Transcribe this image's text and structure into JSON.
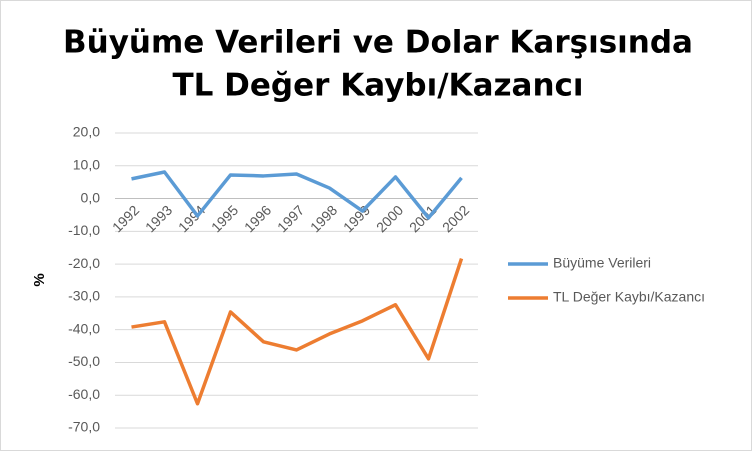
{
  "chart_data": {
    "type": "line",
    "title": [
      "Büyüme Verileri ve Dolar Karşısında",
      "TL Değer Kaybı/Kazancı"
    ],
    "y_label": "%",
    "categories": [
      "1992",
      "1993",
      "1994",
      "1995",
      "1996",
      "1997",
      "1998",
      "1999",
      "2000",
      "2001",
      "2002"
    ],
    "series": [
      {
        "name": "Büyüme Verileri",
        "color": "#5b9bd5",
        "values": [
          6.0,
          8.1,
          -5.3,
          7.2,
          6.9,
          7.5,
          3.2,
          -3.8,
          6.6,
          -5.9,
          6.3
        ]
      },
      {
        "name": "TL Değer Kaybı/Kazancı",
        "color": "#ed7d31",
        "values": [
          -39.2,
          -37.6,
          -62.6,
          -34.6,
          -43.7,
          -46.2,
          -41.3,
          -37.3,
          -32.4,
          -48.9,
          -18.3
        ]
      }
    ],
    "ylim": [
      -70,
      20
    ],
    "yticks": [
      {
        "value": -70,
        "label": "-70,0"
      },
      {
        "value": -60,
        "label": "-60,0"
      },
      {
        "value": -50,
        "label": "-50,0"
      },
      {
        "value": -40,
        "label": "-40,0"
      },
      {
        "value": -30,
        "label": "-30,0"
      },
      {
        "value": -20,
        "label": "-20,0"
      },
      {
        "value": -10,
        "label": "-10,0"
      },
      {
        "value": 0,
        "label": "0,0"
      },
      {
        "value": 10,
        "label": "10,0"
      },
      {
        "value": 20,
        "label": "20,0"
      }
    ],
    "grid": true,
    "legend": "right"
  }
}
